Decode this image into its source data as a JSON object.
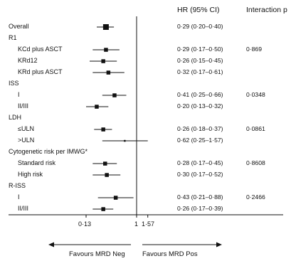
{
  "chart_data": {
    "type": "forest",
    "header_hr": "HR (95% CI)",
    "header_interaction": "Interaction p",
    "x_scale": "log",
    "xlim": [
      0.1,
      2.1
    ],
    "reference_line": 1,
    "ticks": [
      {
        "value": 0.13,
        "label": "0·13"
      },
      {
        "value": 1,
        "label": "1"
      },
      {
        "value": 1.57,
        "label": "1·57"
      }
    ],
    "favours_left": "Favours MRD Neg",
    "favours_right": "Favours MRD Pos",
    "rows": [
      {
        "label": "Overall",
        "indent": 0,
        "hr": 0.29,
        "lo": 0.2,
        "hi": 0.4,
        "text": "0·29 (0·20–0·40)",
        "p": ""
      },
      {
        "label": "R1",
        "indent": 0,
        "hr": null,
        "text": "",
        "p": ""
      },
      {
        "label": "KCd plus ASCT",
        "indent": 1,
        "hr": 0.29,
        "lo": 0.17,
        "hi": 0.5,
        "text": "0·29 (0·17–0·50)",
        "p": "0·869"
      },
      {
        "label": "KRd12",
        "indent": 1,
        "hr": 0.26,
        "lo": 0.15,
        "hi": 0.45,
        "text": "0·26 (0·15–0·45)",
        "p": ""
      },
      {
        "label": "KRd plus ASCT",
        "indent": 1,
        "hr": 0.32,
        "lo": 0.17,
        "hi": 0.61,
        "text": "0·32 (0·17–0·61)",
        "p": ""
      },
      {
        "label": "ISS",
        "indent": 0,
        "hr": null,
        "text": "",
        "p": ""
      },
      {
        "label": "I",
        "indent": 1,
        "hr": 0.41,
        "lo": 0.25,
        "hi": 0.66,
        "text": "0·41 (0·25–0·66)",
        "p": "0·0348"
      },
      {
        "label": "II/III",
        "indent": 1,
        "hr": 0.2,
        "lo": 0.13,
        "hi": 0.32,
        "text": "0·20 (0·13–0·32)",
        "p": ""
      },
      {
        "label": "LDH",
        "indent": 0,
        "hr": null,
        "text": "",
        "p": ""
      },
      {
        "label": "≤ULN",
        "indent": 1,
        "hr": 0.26,
        "lo": 0.18,
        "hi": 0.37,
        "text": "0·26 (0·18–0·37)",
        "p": "0·0861"
      },
      {
        "label": ">ULN",
        "indent": 1,
        "hr": 0.62,
        "lo": 0.25,
        "hi": 1.57,
        "text": "0·62 (0·25–1·57)",
        "p": ""
      },
      {
        "label": "Cytogenetic risk per IMWG*",
        "indent": 0,
        "hr": null,
        "text": "",
        "p": ""
      },
      {
        "label": "Standard risk",
        "indent": 1,
        "hr": 0.28,
        "lo": 0.17,
        "hi": 0.45,
        "text": "0·28 (0·17–0·45)",
        "p": "0·8608"
      },
      {
        "label": "High risk",
        "indent": 1,
        "hr": 0.3,
        "lo": 0.17,
        "hi": 0.52,
        "text": "0·30 (0·17–0·52)",
        "p": ""
      },
      {
        "label": "R-ISS",
        "indent": 0,
        "hr": null,
        "text": "",
        "p": ""
      },
      {
        "label": "I",
        "indent": 1,
        "hr": 0.43,
        "lo": 0.21,
        "hi": 0.88,
        "text": "0·43 (0·21–0·88)",
        "p": "0·2466"
      },
      {
        "label": "II/III",
        "indent": 1,
        "hr": 0.26,
        "lo": 0.17,
        "hi": 0.39,
        "text": "0·26 (0·17–0·39)",
        "p": ""
      }
    ]
  }
}
